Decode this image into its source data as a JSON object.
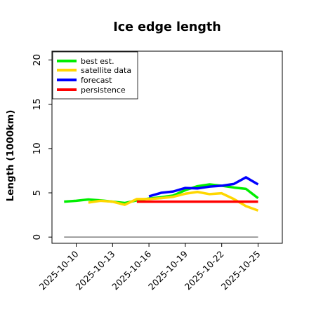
{
  "chart_data": {
    "type": "line",
    "title": "Ice edge length",
    "xlabel": "",
    "ylabel": "Length (1000km)",
    "xlim": [
      "2025-10-08",
      "2025-10-27"
    ],
    "ylim": [
      -0.7,
      21
    ],
    "yticks": [
      0,
      5,
      10,
      15,
      20
    ],
    "xticks": [
      "2025-10-10",
      "2025-10-13",
      "2025-10-16",
      "2025-10-19",
      "2025-10-22",
      "2025-10-25"
    ],
    "highlighted_xtick": "2025-10-16",
    "highlight_color": "#228b22",
    "grid": false,
    "legend_position": "top-left",
    "reference_line": {
      "y": 0,
      "x_start": "2025-10-09",
      "x_end": "2025-10-25",
      "color": "#808080"
    },
    "series": [
      {
        "name": "best est.",
        "color": "#00ee00",
        "x": [
          "2025-10-09",
          "2025-10-10",
          "2025-10-11",
          "2025-10-12",
          "2025-10-13",
          "2025-10-14",
          "2025-10-15",
          "2025-10-16",
          "2025-10-17",
          "2025-10-18",
          "2025-10-19",
          "2025-10-20",
          "2025-10-21",
          "2025-10-22",
          "2025-10-23",
          "2025-10-24",
          "2025-10-25"
        ],
        "y": [
          4.0,
          4.1,
          4.25,
          4.15,
          4.0,
          3.85,
          4.15,
          4.35,
          4.5,
          4.7,
          5.3,
          5.75,
          5.95,
          5.8,
          5.6,
          5.45,
          4.4
        ]
      },
      {
        "name": "satellite data",
        "color": "#ffd700",
        "x": [
          "2025-10-11",
          "2025-10-12",
          "2025-10-13",
          "2025-10-14",
          "2025-10-15",
          "2025-10-16",
          "2025-10-17",
          "2025-10-18",
          "2025-10-19",
          "2025-10-20",
          "2025-10-21",
          "2025-10-22",
          "2025-10-23",
          "2025-10-24",
          "2025-10-25"
        ],
        "y": [
          3.9,
          4.1,
          4.0,
          3.65,
          4.3,
          4.3,
          4.4,
          4.55,
          4.9,
          5.1,
          4.85,
          4.95,
          4.3,
          3.5,
          3.0
        ]
      },
      {
        "name": "forecast",
        "color": "#0000ff",
        "x": [
          "2025-10-16",
          "2025-10-17",
          "2025-10-18",
          "2025-10-19",
          "2025-10-20",
          "2025-10-21",
          "2025-10-22",
          "2025-10-23",
          "2025-10-24",
          "2025-10-25"
        ],
        "y": [
          4.6,
          5.0,
          5.15,
          5.55,
          5.5,
          5.7,
          5.8,
          6.0,
          6.75,
          5.95
        ]
      },
      {
        "name": "persistence",
        "color": "#ff0000",
        "x": [
          "2025-10-15",
          "2025-10-16",
          "2025-10-17",
          "2025-10-18",
          "2025-10-19",
          "2025-10-20",
          "2025-10-21",
          "2025-10-22",
          "2025-10-23",
          "2025-10-24",
          "2025-10-25"
        ],
        "y": [
          4.0,
          4.0,
          4.0,
          4.0,
          4.0,
          4.0,
          4.0,
          4.0,
          4.0,
          4.0,
          4.0
        ]
      }
    ]
  }
}
